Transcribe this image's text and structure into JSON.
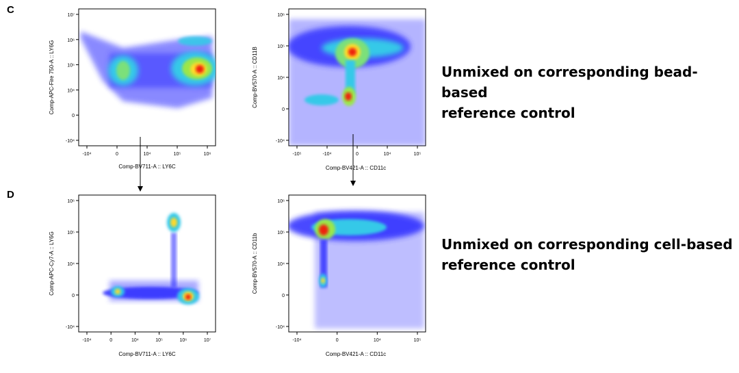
{
  "panels": {
    "c_label": "C",
    "d_label": "D"
  },
  "captions": {
    "bead": [
      "Unmixed on corresponding bead-based",
      "reference control"
    ],
    "cell": [
      "Unmixed on corresponding cell-based",
      "reference control"
    ]
  },
  "chart_data": [
    {
      "type": "scatter",
      "id": "C-left",
      "xlabel": "Comp-BV711-A :: LY6C",
      "ylabel": "Comp-APC-Fire 750-A :: LY6G",
      "xticks": [
        "-10⁴",
        "0",
        "10⁴",
        "10⁵",
        "10⁶"
      ],
      "yticks": [
        "10⁷",
        "10⁶",
        "10⁵",
        "10⁴",
        "0",
        "-10⁴"
      ],
      "populations": [
        {
          "x": 0.38,
          "y": 5.1,
          "density": "high"
        },
        {
          "x": 5.7,
          "y": 5.0,
          "density": "highest"
        },
        {
          "x": 5.6,
          "y": 5.9,
          "density": "low"
        }
      ]
    },
    {
      "type": "scatter",
      "id": "C-right",
      "xlabel": "Comp-BV421-A :: CD11c",
      "ylabel": "Comp-BV570-A :: CD11B",
      "xticks": [
        "-10⁵",
        "-10⁴",
        "0",
        "10⁴",
        "10⁵"
      ],
      "yticks": [
        "10⁶",
        "10⁵",
        "10⁴",
        "0",
        "-10⁴"
      ],
      "populations": [
        {
          "x": 0.1,
          "y": 4.85,
          "density": "highest"
        },
        {
          "x": -0.1,
          "y": 3.1,
          "density": "highest"
        },
        {
          "x": -2.2,
          "y": 2.8,
          "density": "medium"
        }
      ]
    },
    {
      "type": "scatter",
      "id": "D-left",
      "xlabel": "Comp-BV711-A :: LY6C",
      "ylabel": "Comp-APC-Cy7-A :: LY6G",
      "xticks": [
        "-10⁴",
        "0",
        "10⁴",
        "10⁵",
        "10⁶",
        "10⁷"
      ],
      "yticks": [
        "10⁶",
        "10⁵",
        "10⁴",
        "0",
        "-10⁴"
      ],
      "populations": [
        {
          "x": 5.0,
          "y": 5.5,
          "density": "high"
        },
        {
          "x": 6.0,
          "y": 2.7,
          "density": "highest"
        },
        {
          "x": 0.1,
          "y": 3.0,
          "density": "medium"
        }
      ]
    },
    {
      "type": "scatter",
      "id": "D-right",
      "xlabel": "Comp-BV421-A :: CD11c",
      "ylabel": "Comp-BV570-A :: CD11b",
      "xticks": [
        "-10⁴",
        "0",
        "10⁴",
        "10⁵"
      ],
      "yticks": [
        "10⁶",
        "10⁵",
        "10⁴",
        "0",
        "-10⁴"
      ],
      "populations": [
        {
          "x": 0.0,
          "y": 4.9,
          "density": "highest"
        },
        {
          "x": 0.0,
          "y": 3.1,
          "density": "high"
        }
      ]
    }
  ],
  "colors": {
    "density_low": "#1a1aff",
    "density_mid": "#33cccc",
    "density_high": "#ffee33",
    "density_peak": "#ee2211"
  }
}
